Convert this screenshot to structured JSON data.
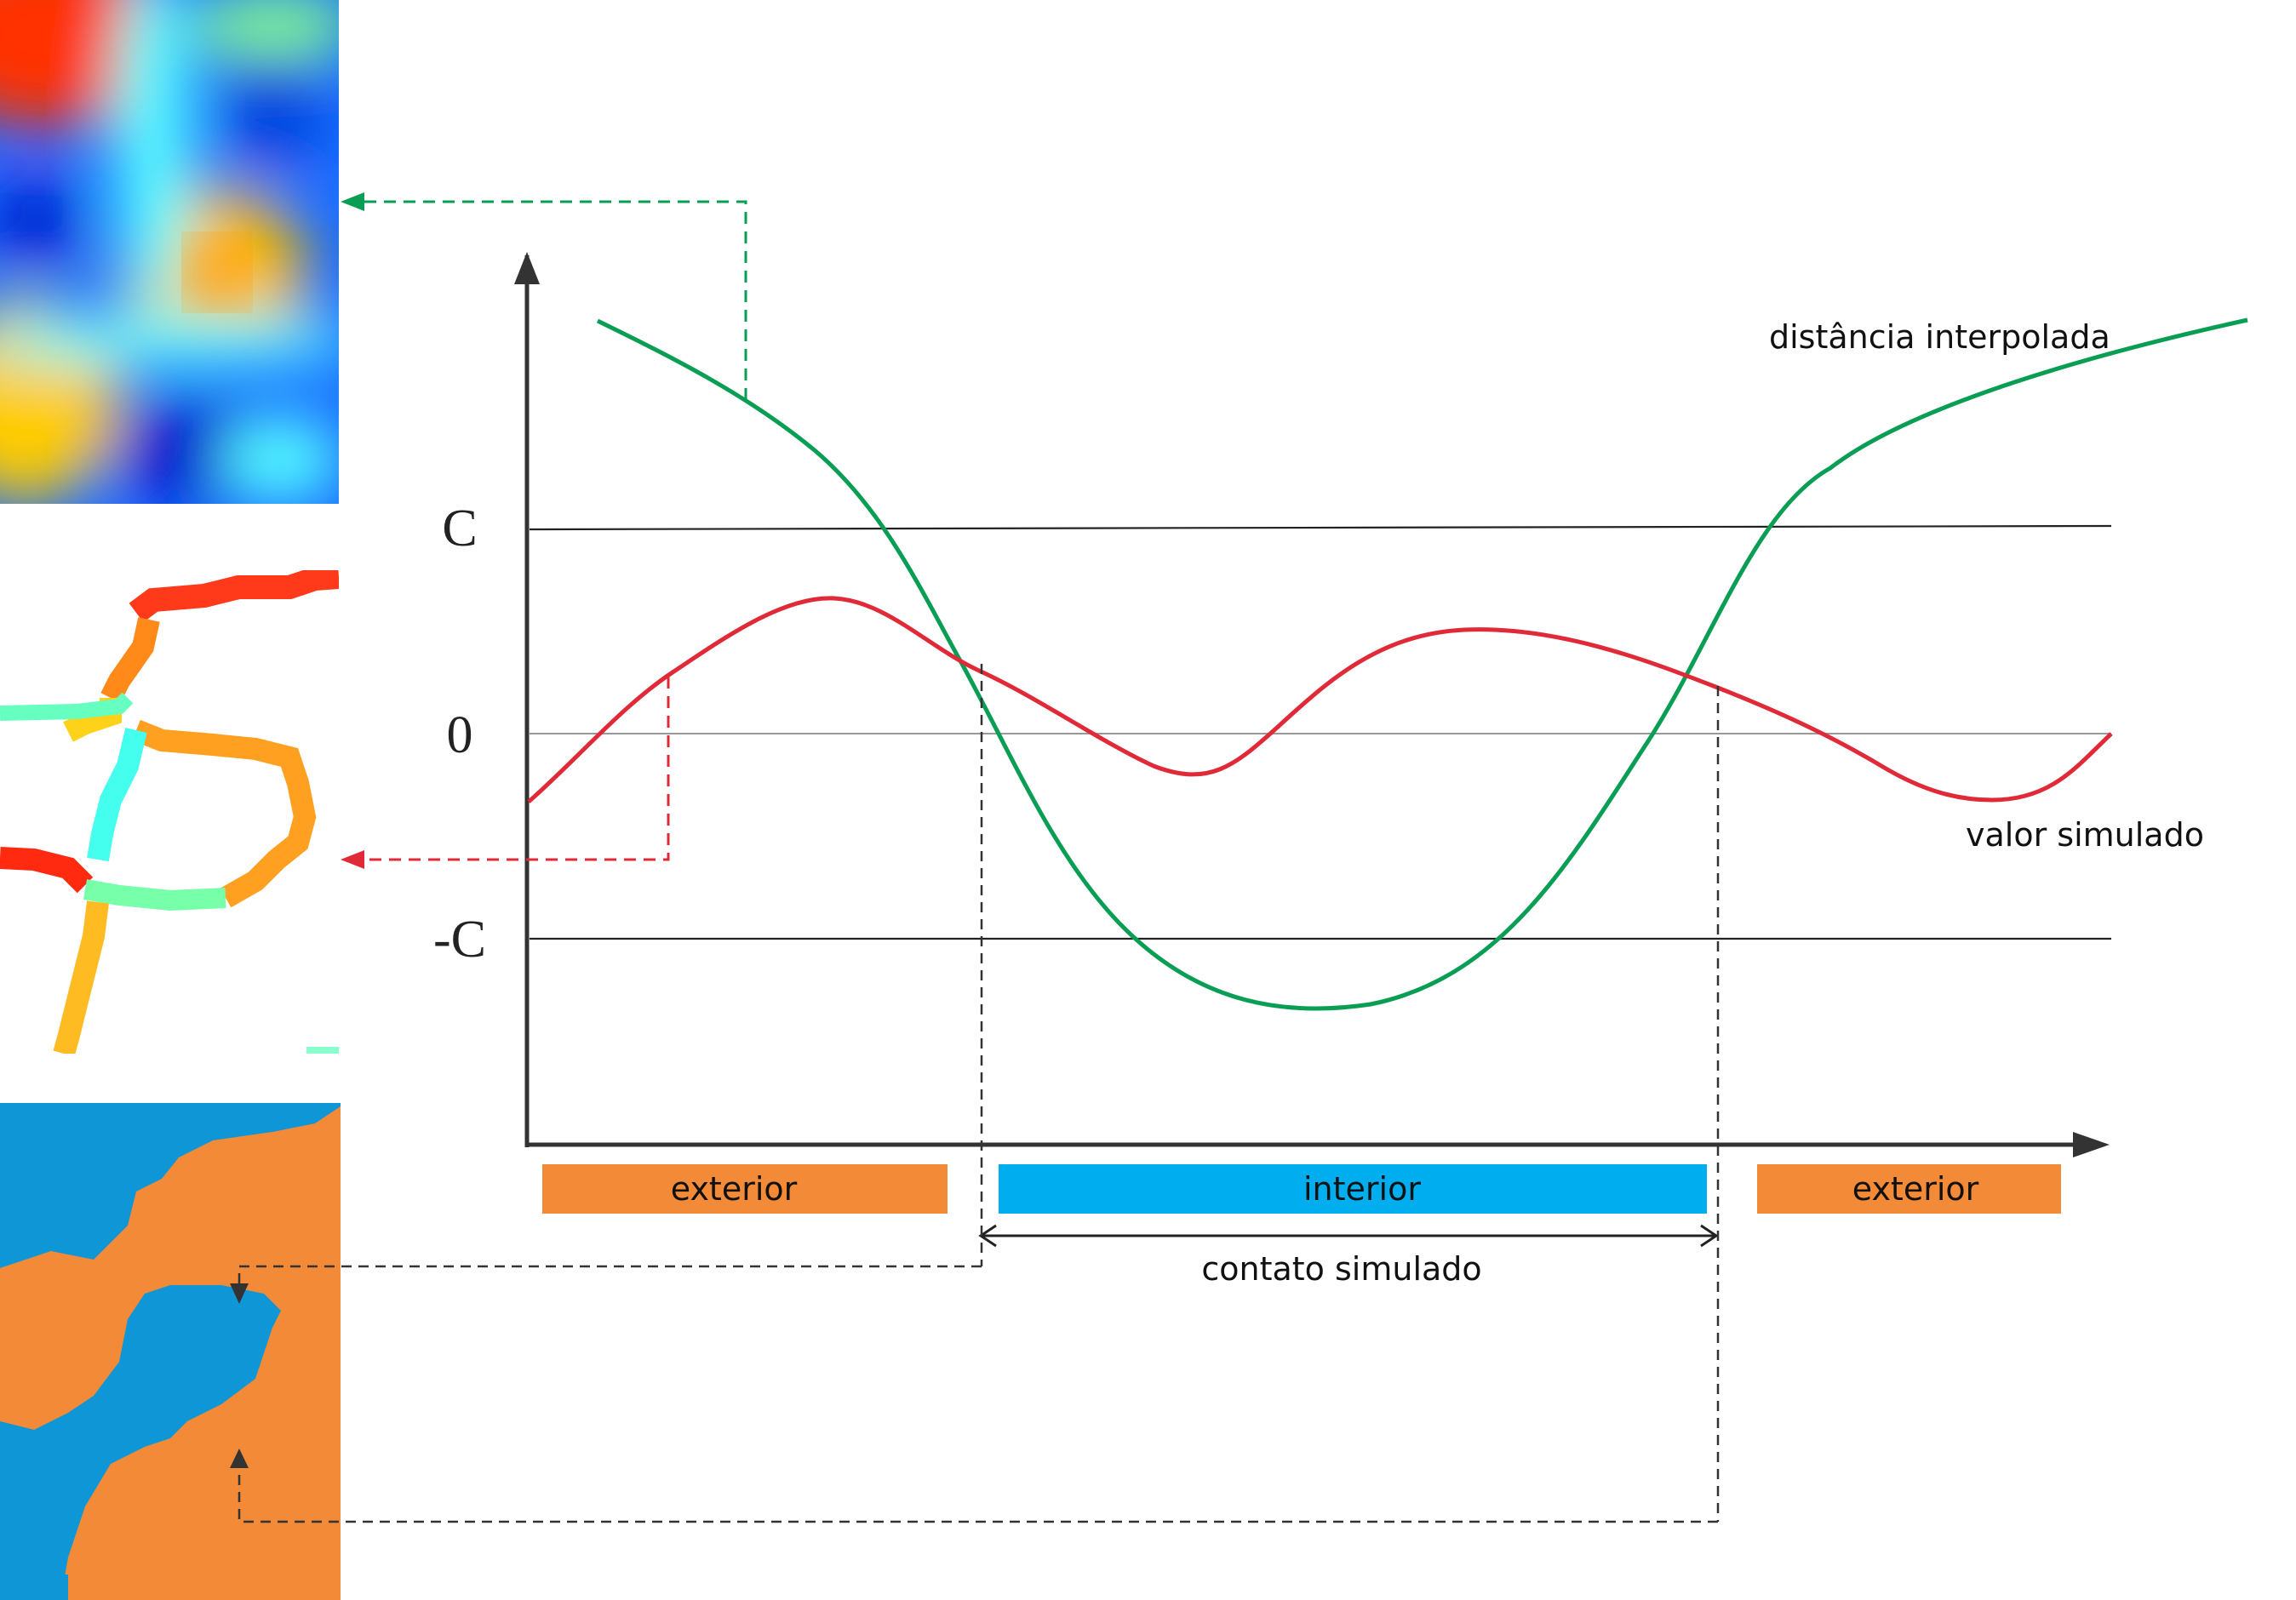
{
  "axis_labels": {
    "c_pos": "C",
    "zero": "0",
    "c_neg": "-C"
  },
  "curves": {
    "interpolated": {
      "label": "distância interpolada",
      "color": "#0a9e55"
    },
    "simulated": {
      "label": "valor simulado",
      "color": "#e02a38"
    }
  },
  "zones": [
    {
      "label": "exterior",
      "color": "#f28a37"
    },
    {
      "label": "interior",
      "color": "#00aeef"
    },
    {
      "label": "exterior",
      "color": "#f28a37"
    }
  ],
  "contact_label": "contato simulado",
  "panels": {
    "distance_field": {
      "kind": "continuous-map",
      "colormap": [
        "#0000cc",
        "#00aaff",
        "#33ffff",
        "#ffff00",
        "#ff8800",
        "#ff2200"
      ]
    },
    "simulated_field": {
      "kind": "band-map"
    },
    "classified_map": {
      "kind": "binary-map",
      "colors": [
        "#0f96d6",
        "#f28a37"
      ]
    }
  }
}
